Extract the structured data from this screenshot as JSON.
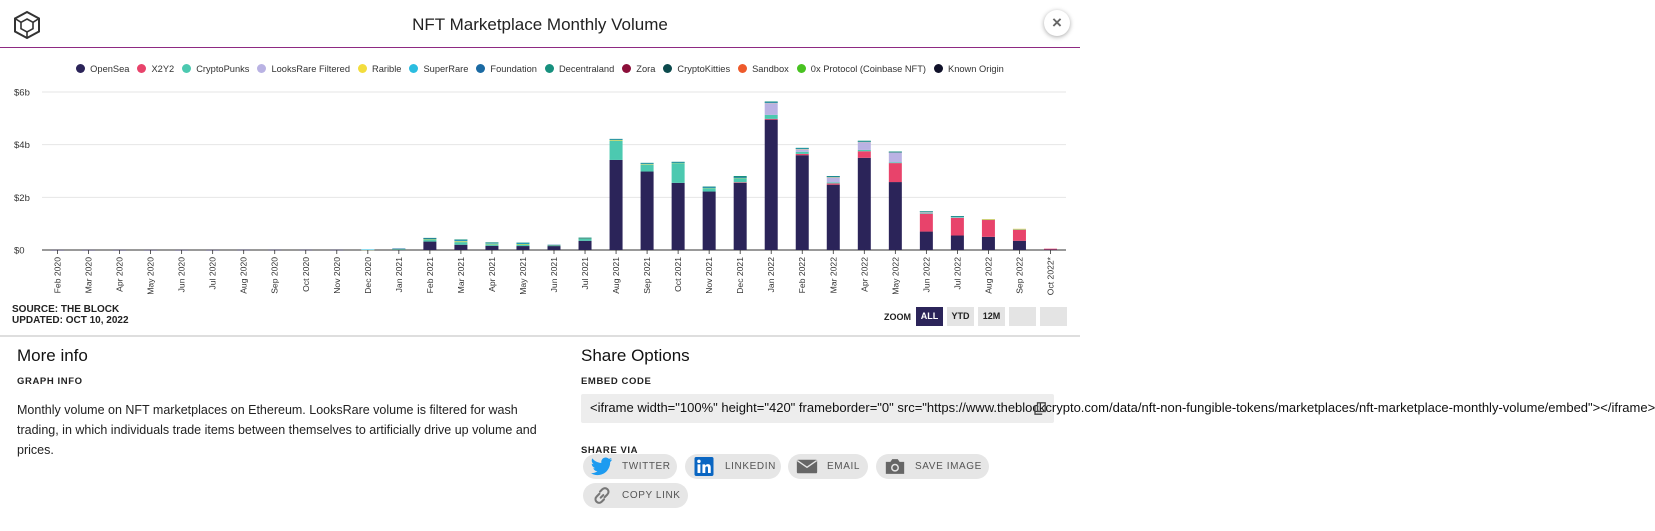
{
  "header": {
    "title": "NFT Marketplace Monthly Volume",
    "close_label": "×",
    "logo_icon": "the-block-cube-logo"
  },
  "legend": [
    {
      "name": "OpenSea",
      "color": "#2b2459"
    },
    {
      "name": "X2Y2",
      "color": "#e8436b"
    },
    {
      "name": "CryptoPunks",
      "color": "#4cc9b0"
    },
    {
      "name": "LooksRare Filtered",
      "color": "#b9b2e3"
    },
    {
      "name": "Rarible",
      "color": "#f3dd3d"
    },
    {
      "name": "SuperRare",
      "color": "#2bbde0"
    },
    {
      "name": "Foundation",
      "color": "#1b6aa3"
    },
    {
      "name": "Decentraland",
      "color": "#17907e"
    },
    {
      "name": "Zora",
      "color": "#8c0f3a"
    },
    {
      "name": "CryptoKitties",
      "color": "#0c4a4d"
    },
    {
      "name": "Sandbox",
      "color": "#ee5a2b"
    },
    {
      "name": "0x Protocol (Coinbase NFT)",
      "color": "#48c221"
    },
    {
      "name": "Known Origin",
      "color": "#101129"
    }
  ],
  "chart_data": {
    "type": "bar",
    "stacked": true,
    "title": "NFT Marketplace Monthly Volume",
    "xlabel": "",
    "ylabel": "",
    "ylim": [
      0,
      6
    ],
    "y_unit": "billion USD",
    "yticks": [
      0,
      2,
      4,
      6
    ],
    "ytick_labels": [
      "$0",
      "$2b",
      "$4b",
      "$6b"
    ],
    "categories": [
      "Feb 2020",
      "Mar 2020",
      "Apr 2020",
      "May 2020",
      "Jun 2020",
      "Jul 2020",
      "Aug 2020",
      "Sep 2020",
      "Oct 2020",
      "Nov 2020",
      "Dec 2020",
      "Jan 2021",
      "Feb 2021",
      "Mar 2021",
      "Apr 2021",
      "May 2021",
      "Jun 2021",
      "Jul 2021",
      "Aug 2021",
      "Sep 2021",
      "Oct 2021",
      "Nov 2021",
      "Dec 2021",
      "Jan 2022",
      "Feb 2022",
      "Mar 2022",
      "Apr 2022",
      "May 2022",
      "Jun 2022",
      "Jul 2022",
      "Aug 2022",
      "Sep 2022",
      "Oct 2022*"
    ],
    "series": [
      {
        "name": "OpenSea",
        "values": [
          0.005,
          0.005,
          0.005,
          0.005,
          0.005,
          0.005,
          0.01,
          0.01,
          0.01,
          0.01,
          0.01,
          0.02,
          0.32,
          0.2,
          0.16,
          0.15,
          0.15,
          0.35,
          3.42,
          2.98,
          2.55,
          2.22,
          2.55,
          4.95,
          3.6,
          2.48,
          3.5,
          2.58,
          0.7,
          0.55,
          0.5,
          0.35,
          0.02
        ]
      },
      {
        "name": "X2Y2",
        "values": [
          0,
          0,
          0,
          0,
          0,
          0,
          0,
          0,
          0,
          0,
          0,
          0,
          0,
          0,
          0,
          0,
          0,
          0,
          0,
          0,
          0,
          0,
          0.02,
          0.03,
          0.05,
          0.05,
          0.25,
          0.72,
          0.68,
          0.67,
          0.65,
          0.42,
          0.03
        ]
      },
      {
        "name": "CryptoPunks",
        "values": [
          0,
          0,
          0,
          0,
          0,
          0,
          0,
          0,
          0,
          0,
          0,
          0.01,
          0.06,
          0.1,
          0.06,
          0.06,
          0.02,
          0.08,
          0.72,
          0.26,
          0.75,
          0.13,
          0.15,
          0.15,
          0.08,
          0.04,
          0.05,
          0.03,
          0.02,
          0.02,
          0.01,
          0.02,
          0
        ]
      },
      {
        "name": "LooksRare Filtered",
        "values": [
          0,
          0,
          0,
          0,
          0,
          0,
          0,
          0,
          0,
          0,
          0,
          0,
          0,
          0,
          0,
          0,
          0,
          0,
          0,
          0,
          0,
          0,
          0,
          0.45,
          0.1,
          0.2,
          0.3,
          0.38,
          0.05,
          0.03,
          0.01,
          0.01,
          0
        ]
      },
      {
        "name": "Rarible",
        "values": [
          0,
          0,
          0,
          0,
          0,
          0,
          0,
          0,
          0,
          0,
          0.005,
          0.01,
          0.02,
          0.03,
          0.02,
          0.02,
          0.01,
          0.01,
          0.03,
          0.02,
          0.02,
          0.02,
          0.02,
          0.02,
          0.02,
          0.01,
          0.02,
          0.01,
          0.005,
          0.005,
          0.005,
          0.005,
          0
        ]
      },
      {
        "name": "SuperRare",
        "values": [
          0,
          0,
          0,
          0,
          0,
          0,
          0,
          0,
          0,
          0,
          0.005,
          0.01,
          0.02,
          0.03,
          0.02,
          0.02,
          0.01,
          0.01,
          0.02,
          0.02,
          0.01,
          0.01,
          0.01,
          0.01,
          0.01,
          0.01,
          0.01,
          0.005,
          0.005,
          0.005,
          0,
          0,
          0
        ]
      },
      {
        "name": "Foundation",
        "values": [
          0,
          0,
          0,
          0,
          0,
          0,
          0,
          0,
          0,
          0,
          0,
          0.005,
          0.03,
          0.03,
          0.02,
          0.02,
          0.01,
          0.01,
          0.02,
          0.02,
          0.01,
          0.01,
          0.01,
          0.01,
          0.01,
          0.01,
          0.01,
          0.005,
          0.005,
          0.005,
          0,
          0,
          0
        ]
      },
      {
        "name": "Decentraland",
        "values": [
          0,
          0,
          0,
          0,
          0,
          0,
          0,
          0,
          0,
          0,
          0,
          0,
          0.01,
          0.01,
          0.01,
          0.01,
          0,
          0.01,
          0.01,
          0.01,
          0.01,
          0.02,
          0.05,
          0.02,
          0.01,
          0.01,
          0.01,
          0.01,
          0.005,
          0.005,
          0,
          0,
          0
        ]
      },
      {
        "name": "Zora",
        "values": [
          0,
          0,
          0,
          0,
          0,
          0,
          0,
          0,
          0,
          0,
          0,
          0,
          0,
          0,
          0,
          0,
          0,
          0,
          0,
          0,
          0,
          0,
          0,
          0,
          0,
          0,
          0,
          0,
          0,
          0,
          0,
          0,
          0
        ]
      },
      {
        "name": "CryptoKitties",
        "values": [
          0,
          0,
          0,
          0,
          0,
          0,
          0,
          0,
          0,
          0,
          0,
          0,
          0,
          0,
          0,
          0,
          0,
          0,
          0,
          0,
          0,
          0,
          0,
          0,
          0,
          0,
          0,
          0,
          0,
          0,
          0,
          0,
          0
        ]
      },
      {
        "name": "Sandbox",
        "values": [
          0,
          0,
          0,
          0,
          0,
          0,
          0,
          0,
          0,
          0,
          0,
          0,
          0,
          0,
          0,
          0,
          0,
          0,
          0,
          0,
          0,
          0,
          0,
          0,
          0,
          0,
          0,
          0,
          0,
          0,
          0,
          0,
          0
        ]
      },
      {
        "name": "0x Protocol (Coinbase NFT)",
        "values": [
          0,
          0,
          0,
          0,
          0,
          0,
          0,
          0,
          0,
          0,
          0,
          0,
          0,
          0,
          0,
          0,
          0,
          0,
          0,
          0,
          0,
          0,
          0,
          0,
          0,
          0,
          0,
          0,
          0,
          0,
          0,
          0,
          0
        ]
      },
      {
        "name": "Known Origin",
        "values": [
          0,
          0,
          0,
          0,
          0,
          0,
          0,
          0,
          0,
          0,
          0,
          0,
          0,
          0,
          0,
          0,
          0,
          0,
          0,
          0,
          0,
          0,
          0,
          0,
          0,
          0,
          0,
          0,
          0,
          0,
          0,
          0,
          0
        ]
      }
    ]
  },
  "source": {
    "line1": "SOURCE: THE BLOCK",
    "line2": "UPDATED: OCT 10, 2022"
  },
  "zoom": {
    "label": "ZOOM",
    "buttons": [
      "ALL",
      "YTD",
      "12M"
    ],
    "active": "ALL"
  },
  "more_info": {
    "title": "More info",
    "subtitle": "GRAPH INFO",
    "text": "Monthly volume on NFT marketplaces on Ethereum. LooksRare volume is filtered for wash trading, in which individuals trade items between themselves to artificially drive up volume and prices."
  },
  "share": {
    "title": "Share Options",
    "embed_label": "EMBED CODE",
    "embed_code": "<iframe width=\"100%\" height=\"420\" frameborder=\"0\" src=\"https://www.theblockcrypto.com/data/nft-non-fungible-tokens/marketplaces/nft-marketplace-monthly-volume/embed\"></iframe>",
    "share_via_label": "SHARE VIA",
    "buttons": {
      "twitter": "TWITTER",
      "linkedin": "LINKEDIN",
      "email": "EMAIL",
      "save_image": "SAVE IMAGE",
      "copy_link": "COPY LINK"
    }
  }
}
